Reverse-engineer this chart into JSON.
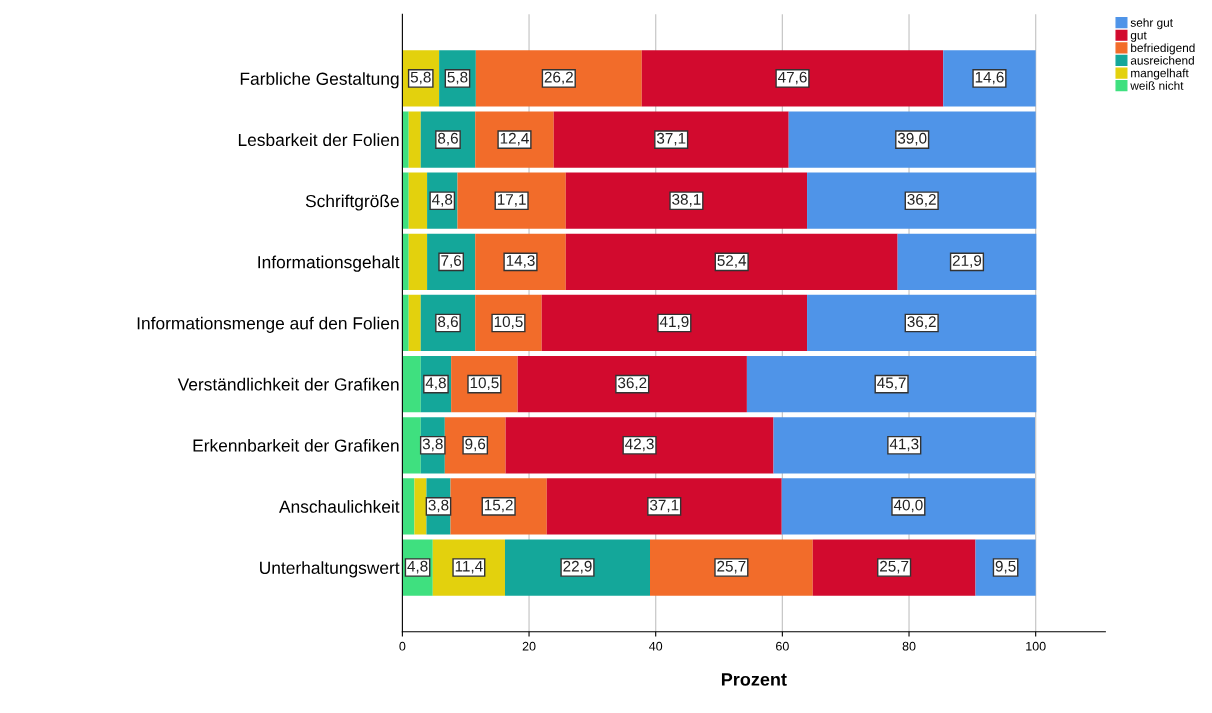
{
  "chart_data": {
    "type": "bar",
    "orientation": "horizontal",
    "stacked": true,
    "xlabel": "Prozent",
    "categories": [
      "Farbliche Gestaltung",
      "Lesbarkeit der Folien",
      "Schriftgröße",
      "Informationsgehalt",
      "Informationsmenge auf den Folien",
      "Verständlichkeit der Grafiken",
      "Erkennbarkeit der Grafiken",
      "Anschaulichkeit",
      "Unterhaltungswert"
    ],
    "series": [
      {
        "name": "weiß nicht",
        "color": "#3fe07f",
        "values": [
          0,
          1.0,
          1.0,
          1.0,
          1.0,
          2.9,
          2.9,
          1.9,
          4.8
        ],
        "value_labels": [
          null,
          null,
          null,
          null,
          null,
          null,
          null,
          null,
          "4,8"
        ]
      },
      {
        "name": "mangelhaft",
        "color": "#e3d10d",
        "values": [
          5.8,
          1.9,
          2.9,
          2.9,
          1.9,
          0,
          0,
          1.9,
          11.4
        ],
        "value_labels": [
          "5,8",
          null,
          null,
          null,
          null,
          null,
          null,
          null,
          "11,4"
        ]
      },
      {
        "name": "ausreichend",
        "color": "#14a79a",
        "values": [
          5.8,
          8.6,
          4.8,
          7.6,
          8.6,
          4.8,
          3.8,
          3.8,
          22.9
        ],
        "value_labels": [
          "5,8",
          "8,6",
          "4,8",
          "7,6",
          "8,6",
          "4,8",
          "3,8",
          "3,8",
          "22,9"
        ]
      },
      {
        "name": "befriedigend",
        "color": "#f26c2a",
        "values": [
          26.2,
          12.4,
          17.1,
          14.3,
          10.5,
          10.5,
          9.6,
          15.2,
          25.7
        ],
        "value_labels": [
          "26,2",
          "12,4",
          "17,1",
          "14,3",
          "10,5",
          "10,5",
          "9,6",
          "15,2",
          "25,7"
        ]
      },
      {
        "name": "gut",
        "color": "#d20a2e",
        "values": [
          47.6,
          37.1,
          38.1,
          52.4,
          41.9,
          36.2,
          42.3,
          37.1,
          25.7
        ],
        "value_labels": [
          "47,6",
          "37,1",
          "38,1",
          "52,4",
          "41,9",
          "36,2",
          "42,3",
          "37,1",
          "25,7"
        ]
      },
      {
        "name": "sehr gut",
        "color": "#4f94e8",
        "values": [
          14.6,
          39.0,
          36.2,
          21.9,
          36.2,
          45.7,
          41.3,
          40.0,
          9.5
        ],
        "value_labels": [
          "14,6",
          "39,0",
          "36,2",
          "21,9",
          "36,2",
          "45,7",
          "41,3",
          "40,0",
          "9,5"
        ]
      }
    ],
    "xlim": [
      0,
      111
    ],
    "xticks": [
      0,
      20,
      40,
      60,
      80,
      100
    ],
    "grid": "x",
    "legend": "top right"
  }
}
